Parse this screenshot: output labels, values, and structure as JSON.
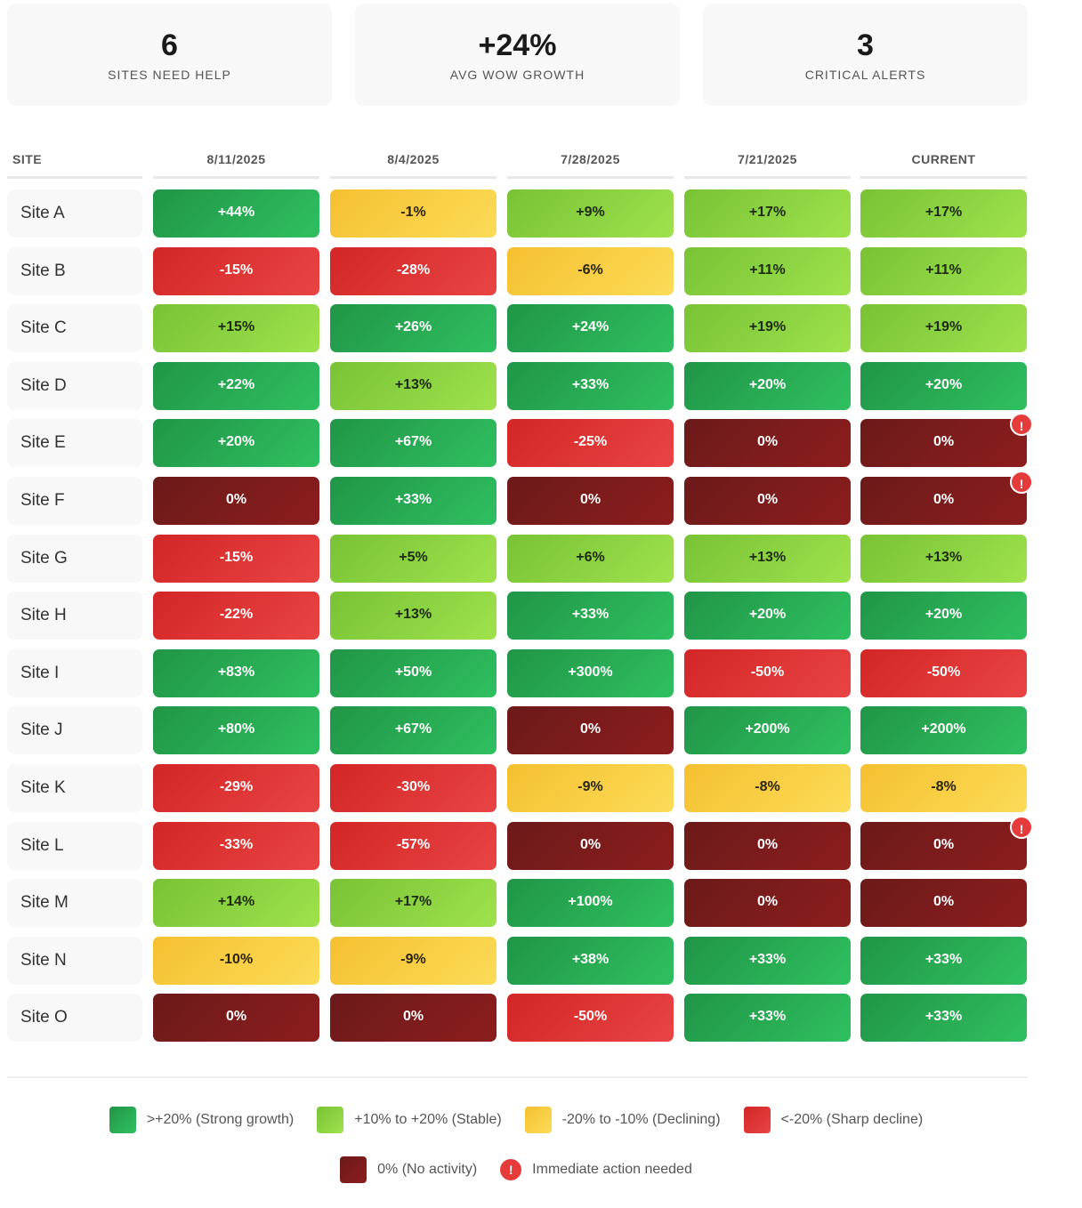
{
  "summary": [
    {
      "value": "6",
      "label": "SITES NEED HELP"
    },
    {
      "value": "+24%",
      "label": "AVG WOW GROWTH"
    },
    {
      "value": "3",
      "label": "CRITICAL ALERTS"
    }
  ],
  "table": {
    "headers": [
      "SITE",
      "8/11/2025",
      "8/4/2025",
      "7/28/2025",
      "7/21/2025",
      "CURRENT"
    ],
    "rows": [
      {
        "site": "Site A",
        "cells": [
          [
            "+44%",
            "strong"
          ],
          [
            "-1%",
            "declining"
          ],
          [
            "+9%",
            "stable"
          ],
          [
            "+17%",
            "stable"
          ],
          [
            "+17%",
            "stable"
          ]
        ],
        "alert": false
      },
      {
        "site": "Site B",
        "cells": [
          [
            "-15%",
            "sharp"
          ],
          [
            "-28%",
            "sharp"
          ],
          [
            "-6%",
            "declining"
          ],
          [
            "+11%",
            "stable"
          ],
          [
            "+11%",
            "stable"
          ]
        ],
        "alert": false
      },
      {
        "site": "Site C",
        "cells": [
          [
            "+15%",
            "stable"
          ],
          [
            "+26%",
            "strong"
          ],
          [
            "+24%",
            "strong"
          ],
          [
            "+19%",
            "stable"
          ],
          [
            "+19%",
            "stable"
          ]
        ],
        "alert": false
      },
      {
        "site": "Site D",
        "cells": [
          [
            "+22%",
            "strong"
          ],
          [
            "+13%",
            "stable"
          ],
          [
            "+33%",
            "strong"
          ],
          [
            "+20%",
            "strong"
          ],
          [
            "+20%",
            "strong"
          ]
        ],
        "alert": false
      },
      {
        "site": "Site E",
        "cells": [
          [
            "+20%",
            "strong"
          ],
          [
            "+67%",
            "strong"
          ],
          [
            "-25%",
            "sharp"
          ],
          [
            "0%",
            "none"
          ],
          [
            "0%",
            "none"
          ]
        ],
        "alert": true
      },
      {
        "site": "Site F",
        "cells": [
          [
            "0%",
            "none"
          ],
          [
            "+33%",
            "strong"
          ],
          [
            "0%",
            "none"
          ],
          [
            "0%",
            "none"
          ],
          [
            "0%",
            "none"
          ]
        ],
        "alert": true
      },
      {
        "site": "Site G",
        "cells": [
          [
            "-15%",
            "sharp"
          ],
          [
            "+5%",
            "stable"
          ],
          [
            "+6%",
            "stable"
          ],
          [
            "+13%",
            "stable"
          ],
          [
            "+13%",
            "stable"
          ]
        ],
        "alert": false
      },
      {
        "site": "Site H",
        "cells": [
          [
            "-22%",
            "sharp"
          ],
          [
            "+13%",
            "stable"
          ],
          [
            "+33%",
            "strong"
          ],
          [
            "+20%",
            "strong"
          ],
          [
            "+20%",
            "strong"
          ]
        ],
        "alert": false
      },
      {
        "site": "Site I",
        "cells": [
          [
            "+83%",
            "strong"
          ],
          [
            "+50%",
            "strong"
          ],
          [
            "+300%",
            "strong"
          ],
          [
            "-50%",
            "sharp"
          ],
          [
            "-50%",
            "sharp"
          ]
        ],
        "alert": false
      },
      {
        "site": "Site J",
        "cells": [
          [
            "+80%",
            "strong"
          ],
          [
            "+67%",
            "strong"
          ],
          [
            "0%",
            "none"
          ],
          [
            "+200%",
            "strong"
          ],
          [
            "+200%",
            "strong"
          ]
        ],
        "alert": false
      },
      {
        "site": "Site K",
        "cells": [
          [
            "-29%",
            "sharp"
          ],
          [
            "-30%",
            "sharp"
          ],
          [
            "-9%",
            "declining"
          ],
          [
            "-8%",
            "declining"
          ],
          [
            "-8%",
            "declining"
          ]
        ],
        "alert": false
      },
      {
        "site": "Site L",
        "cells": [
          [
            "-33%",
            "sharp"
          ],
          [
            "-57%",
            "sharp"
          ],
          [
            "0%",
            "none"
          ],
          [
            "0%",
            "none"
          ],
          [
            "0%",
            "none"
          ]
        ],
        "alert": true
      },
      {
        "site": "Site M",
        "cells": [
          [
            "+14%",
            "stable"
          ],
          [
            "+17%",
            "stable"
          ],
          [
            "+100%",
            "strong"
          ],
          [
            "0%",
            "none"
          ],
          [
            "0%",
            "none"
          ]
        ],
        "alert": false
      },
      {
        "site": "Site N",
        "cells": [
          [
            "-10%",
            "declining"
          ],
          [
            "-9%",
            "declining"
          ],
          [
            "+38%",
            "strong"
          ],
          [
            "+33%",
            "strong"
          ],
          [
            "+33%",
            "strong"
          ]
        ],
        "alert": false
      },
      {
        "site": "Site O",
        "cells": [
          [
            "0%",
            "none"
          ],
          [
            "0%",
            "none"
          ],
          [
            "-50%",
            "sharp"
          ],
          [
            "+33%",
            "strong"
          ],
          [
            "+33%",
            "strong"
          ]
        ],
        "alert": false
      }
    ]
  },
  "alert_glyph": "!",
  "legend": [
    {
      "label": ">+20% (Strong growth)",
      "class": "strong",
      "color": "#22a04e"
    },
    {
      "label": "+10% to +20% (Stable)",
      "class": "stable",
      "color": "#8cd33f"
    },
    {
      "label": "-20% to -10% (Declining)",
      "class": "declining",
      "color": "#f8cd40"
    },
    {
      "label": "<-20% (Sharp decline)",
      "class": "sharp",
      "color": "#dd3333"
    },
    {
      "label": "0% (No activity)",
      "class": "none",
      "color": "#7a1b1b"
    },
    {
      "label": "Immediate action needed",
      "icon": "alert-icon",
      "color": "#e63b3b"
    }
  ]
}
